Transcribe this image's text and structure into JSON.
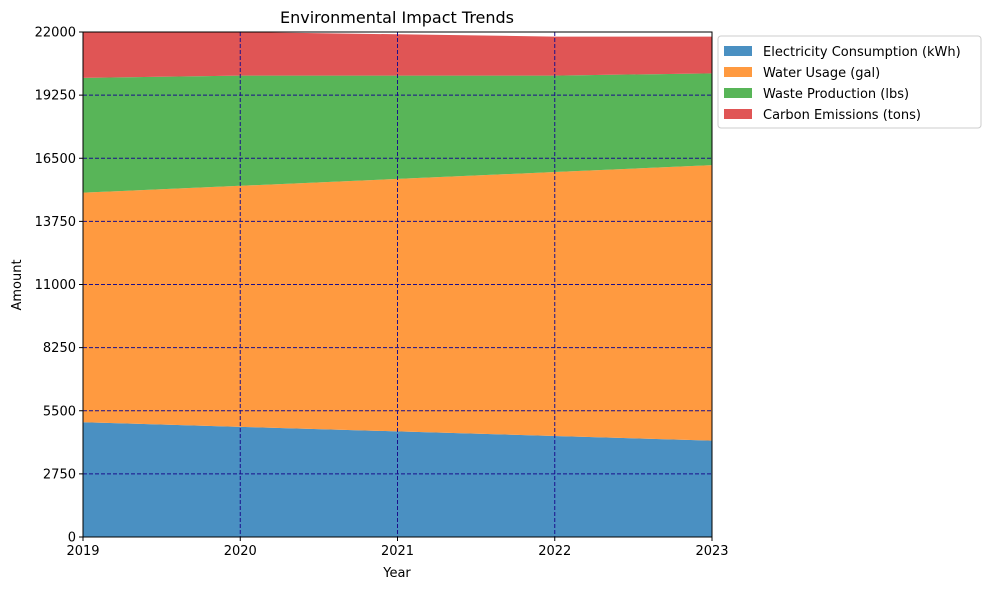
{
  "chart_data": {
    "type": "area",
    "stacked": true,
    "title": "Environmental Impact Trends",
    "xlabel": "Year",
    "ylabel": "Amount",
    "x": [
      2019,
      2020,
      2021,
      2022,
      2023
    ],
    "x_tick_labels": [
      "2019",
      "2020",
      "2021",
      "2022",
      "2023"
    ],
    "xlim": [
      2019,
      2023
    ],
    "ylim": [
      0,
      22000
    ],
    "y_ticks": [
      0,
      2750,
      5500,
      8250,
      11000,
      13750,
      16500,
      19250,
      22000
    ],
    "y_tick_labels": [
      "0",
      "2750",
      "5500",
      "8250",
      "11000",
      "13750",
      "16500",
      "19250",
      "22000"
    ],
    "grid": true,
    "grid_color": "#1a0f8c",
    "legend_position": "outside-top-right",
    "series": [
      {
        "name": "Electricity Consumption (kWh)",
        "color": "#4a90c2",
        "values": [
          5000,
          4800,
          4600,
          4400,
          4200
        ]
      },
      {
        "name": "Water Usage (gal)",
        "color": "#ff9a40",
        "values": [
          10000,
          10500,
          11000,
          11500,
          12000
        ]
      },
      {
        "name": "Waste Production (lbs)",
        "color": "#58b558",
        "values": [
          5000,
          4800,
          4500,
          4200,
          4000
        ]
      },
      {
        "name": "Carbon Emissions (tons)",
        "color": "#e05555",
        "values": [
          2000,
          1900,
          1800,
          1700,
          1600
        ]
      }
    ]
  }
}
